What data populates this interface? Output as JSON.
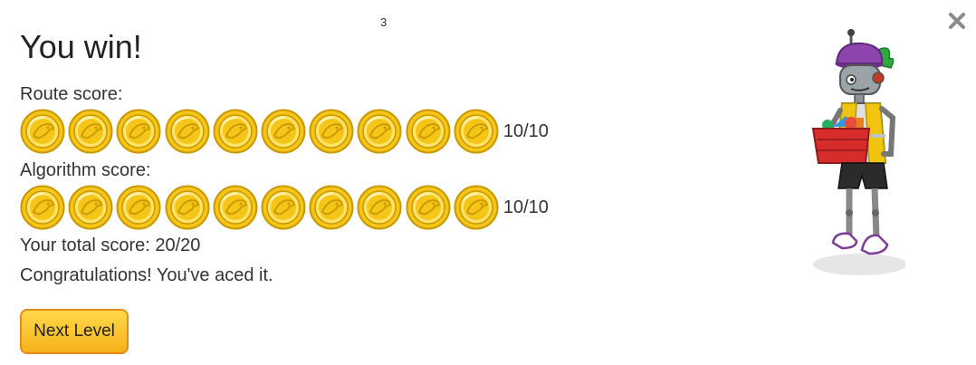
{
  "dialog": {
    "page_number": "3",
    "title": "You win!",
    "close_icon": "close-icon",
    "route": {
      "label": "Route score:",
      "coins_earned": 10,
      "coins_total": 10,
      "value": "10/10"
    },
    "algorithm": {
      "label": "Algorithm score:",
      "coins_earned": 10,
      "coins_total": 10,
      "value": "10/10"
    },
    "total_score": "Your total score: 20/20",
    "message": "Congratulations! You've aced it.",
    "next_button_label": "Next Level",
    "colors": {
      "coin_gold": "#f5c518",
      "button_fill": "#fbc02d",
      "button_border": "#e88a1a"
    }
  }
}
